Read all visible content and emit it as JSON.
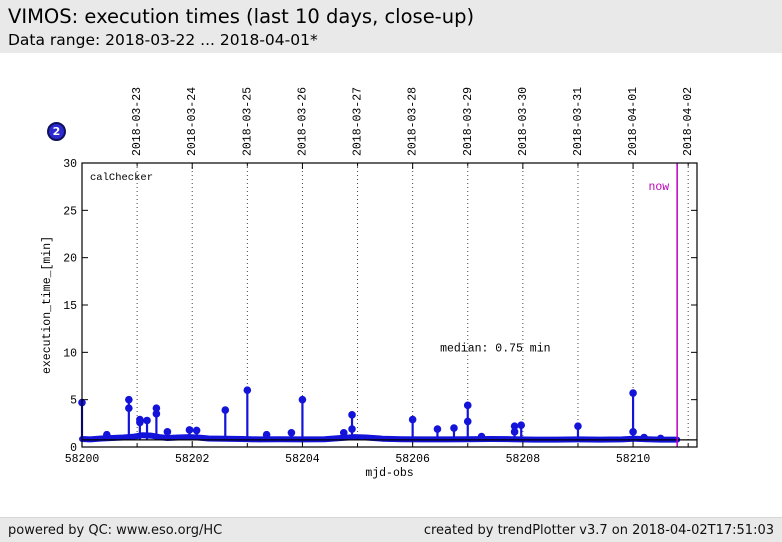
{
  "header": {
    "title": "VIMOS: execution times (last 10 days, close-up)",
    "subtitle": "Data range: 2018-03-22 ... 2018-04-01*"
  },
  "badge": {
    "label": "2"
  },
  "footer": {
    "left": "powered by QC: www.eso.org/HC",
    "right": "created by trendPlotter v3.7 on 2018-04-02T17:51:03"
  },
  "chart_data": {
    "type": "scatter",
    "title": "VIMOS: execution times (last 10 days, close-up)",
    "inner_label": "calChecker",
    "xlabel": "mjd-obs",
    "ylabel": "execution_time_[min]",
    "xlim": [
      58200,
      58211.16
    ],
    "ylim": [
      0,
      30
    ],
    "grid": "vertical-dotted-per-day",
    "x_ticks_major": [
      58200,
      58202,
      58204,
      58206,
      58208,
      58210
    ],
    "x_ticks_minor": [
      58201,
      58203,
      58205,
      58207,
      58209,
      58211
    ],
    "y_ticks_major": [
      0,
      5,
      10,
      15,
      20,
      25,
      30
    ],
    "top_dates": [
      {
        "label": "2018-03-23",
        "mjd": 58201
      },
      {
        "label": "2018-03-24",
        "mjd": 58202
      },
      {
        "label": "2018-03-25",
        "mjd": 58203
      },
      {
        "label": "2018-03-26",
        "mjd": 58204
      },
      {
        "label": "2018-03-27",
        "mjd": 58205
      },
      {
        "label": "2018-03-28",
        "mjd": 58206
      },
      {
        "label": "2018-03-29",
        "mjd": 58207
      },
      {
        "label": "2018-03-30",
        "mjd": 58208
      },
      {
        "label": "2018-03-31",
        "mjd": 58209
      },
      {
        "label": "2018-04-01",
        "mjd": 58210
      },
      {
        "label": "2018-04-02",
        "mjd": 58211
      }
    ],
    "median": {
      "value": 0.75,
      "label": "median: 0.75 min",
      "label_mjd": 58207.5,
      "label_min": 10.5
    },
    "now": {
      "mjd": 58210.8,
      "label": "now",
      "color": "#bb00bb"
    },
    "series": [
      {
        "name": "execution times",
        "color": "#1313d9",
        "marker_radius": 3.8,
        "baseline": [
          [
            58200.0,
            0.85
          ],
          [
            58200.15,
            0.8
          ],
          [
            58200.35,
            0.9
          ],
          [
            58200.55,
            0.95
          ],
          [
            58200.75,
            1.0
          ],
          [
            58200.95,
            1.1
          ],
          [
            58201.1,
            1.25
          ],
          [
            58201.25,
            1.2
          ],
          [
            58201.4,
            1.05
          ],
          [
            58201.55,
            0.95
          ],
          [
            58201.75,
            1.0
          ],
          [
            58201.95,
            1.05
          ],
          [
            58202.1,
            1.0
          ],
          [
            58202.3,
            0.9
          ],
          [
            58202.6,
            0.88
          ],
          [
            58202.9,
            0.85
          ],
          [
            58203.2,
            0.8
          ],
          [
            58203.6,
            0.82
          ],
          [
            58204.0,
            0.8
          ],
          [
            58204.4,
            0.82
          ],
          [
            58204.7,
            0.95
          ],
          [
            58204.95,
            1.05
          ],
          [
            58205.15,
            1.0
          ],
          [
            58205.45,
            0.88
          ],
          [
            58205.8,
            0.82
          ],
          [
            58206.2,
            0.8
          ],
          [
            58206.6,
            0.8
          ],
          [
            58207.0,
            0.82
          ],
          [
            58207.4,
            0.85
          ],
          [
            58207.8,
            0.82
          ],
          [
            58208.2,
            0.78
          ],
          [
            58208.6,
            0.78
          ],
          [
            58209.0,
            0.8
          ],
          [
            58209.4,
            0.78
          ],
          [
            58209.8,
            0.8
          ],
          [
            58210.0,
            0.88
          ],
          [
            58210.25,
            0.82
          ],
          [
            58210.5,
            0.78
          ],
          [
            58210.8,
            0.78
          ]
        ],
        "spikes": [
          {
            "mjd": 58200.0,
            "points": [
              4.7
            ]
          },
          {
            "mjd": 58200.45,
            "points": [
              1.3
            ]
          },
          {
            "mjd": 58200.85,
            "points": [
              5.0,
              4.1
            ]
          },
          {
            "mjd": 58201.05,
            "points": [
              2.9,
              2.6
            ]
          },
          {
            "mjd": 58201.18,
            "points": [
              2.8
            ]
          },
          {
            "mjd": 58201.35,
            "points": [
              4.1,
              3.5
            ]
          },
          {
            "mjd": 58201.55,
            "points": [
              1.6
            ]
          },
          {
            "mjd": 58201.95,
            "points": [
              1.8
            ]
          },
          {
            "mjd": 58202.08,
            "points": [
              1.75
            ]
          },
          {
            "mjd": 58202.6,
            "points": [
              3.9
            ]
          },
          {
            "mjd": 58203.0,
            "points": [
              6.0
            ]
          },
          {
            "mjd": 58203.35,
            "points": [
              1.3
            ]
          },
          {
            "mjd": 58203.8,
            "points": [
              1.5
            ]
          },
          {
            "mjd": 58204.0,
            "points": [
              5.0
            ]
          },
          {
            "mjd": 58204.75,
            "points": [
              1.5
            ]
          },
          {
            "mjd": 58204.9,
            "points": [
              3.4,
              1.9
            ]
          },
          {
            "mjd": 58206.0,
            "points": [
              2.9
            ]
          },
          {
            "mjd": 58206.45,
            "points": [
              1.9
            ]
          },
          {
            "mjd": 58206.75,
            "points": [
              2.0
            ]
          },
          {
            "mjd": 58207.0,
            "points": [
              4.4,
              2.7
            ]
          },
          {
            "mjd": 58207.25,
            "points": [
              1.1
            ]
          },
          {
            "mjd": 58207.85,
            "points": [
              2.2,
              1.6
            ]
          },
          {
            "mjd": 58207.97,
            "points": [
              2.3
            ]
          },
          {
            "mjd": 58209.0,
            "points": [
              2.2
            ]
          },
          {
            "mjd": 58210.0,
            "points": [
              5.7,
              1.6
            ]
          },
          {
            "mjd": 58210.2,
            "points": [
              1.0
            ]
          },
          {
            "mjd": 58210.5,
            "points": [
              0.9
            ]
          }
        ]
      }
    ]
  }
}
